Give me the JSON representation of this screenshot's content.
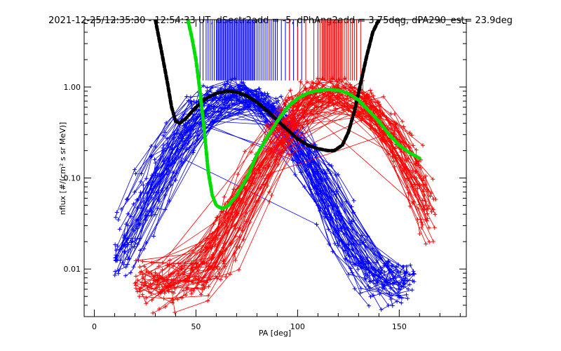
{
  "chart_data": {
    "type": "line",
    "title": "2021-12-25/12:35:30 - 12:54:33 UT, dSectr2add = -5, dPhAng2add = 3.75deg, dPA290_est=  23.9deg",
    "xlabel": "PA [deg]",
    "ylabel": "nflux [#/(cm² s sr MeV)]",
    "xlim": [
      -5,
      183
    ],
    "ylim": [
      0.003,
      5.5
    ],
    "y_scale": "log",
    "x_ticks": [
      0,
      50,
      100,
      150
    ],
    "x_tick_labels": [
      "0",
      "50",
      "100",
      "150"
    ],
    "y_ticks": [
      0.01,
      0.1,
      1.0
    ],
    "y_tick_labels": [
      "0.01",
      "0.10",
      "1.00"
    ],
    "grid": false,
    "colors": {
      "blue_series": "#0000ff",
      "red_series": "#ff0000",
      "black_fit": "#000000",
      "green_fit": "#00dd00"
    },
    "series": [
      {
        "color_key": "blue_series",
        "style": "lines+plus-markers",
        "center_pa": 70,
        "width_pa": 19,
        "peak": 0.9,
        "curve_count": 60,
        "pa_range": [
          10,
          158
        ]
      },
      {
        "color_key": "red_series",
        "style": "lines+plus-markers",
        "center_pa": 118,
        "width_pa": 19,
        "peak": 0.95,
        "curve_count": 60,
        "pa_range": [
          20,
          168
        ]
      },
      {
        "color_key": "black_fit",
        "style": "thick-dashed",
        "x": [
          30,
          33,
          36,
          38,
          40,
          42,
          45,
          50,
          55,
          60,
          65,
          70,
          75,
          80,
          85,
          90,
          95,
          100,
          105,
          110,
          115,
          118,
          122,
          125,
          128,
          131,
          134,
          137,
          140
        ],
        "y": [
          5.5,
          2.5,
          1.1,
          0.6,
          0.42,
          0.4,
          0.45,
          0.6,
          0.75,
          0.85,
          0.9,
          0.88,
          0.8,
          0.68,
          0.55,
          0.43,
          0.34,
          0.27,
          0.23,
          0.21,
          0.2,
          0.2,
          0.23,
          0.32,
          0.55,
          1.1,
          2.2,
          4.0,
          5.5
        ]
      },
      {
        "color_key": "green_fit",
        "style": "thick-dashed",
        "x": [
          46,
          48,
          50,
          52,
          54,
          56,
          58,
          60,
          63,
          66,
          70,
          75,
          80,
          85,
          90,
          95,
          100,
          105,
          110,
          115,
          120,
          125,
          130,
          135,
          140,
          145,
          150,
          155,
          160
        ],
        "y": [
          5.5,
          3.5,
          2.0,
          0.9,
          0.35,
          0.12,
          0.065,
          0.05,
          0.046,
          0.05,
          0.064,
          0.1,
          0.18,
          0.28,
          0.42,
          0.6,
          0.75,
          0.86,
          0.92,
          0.94,
          0.92,
          0.85,
          0.72,
          0.55,
          0.42,
          0.3,
          0.23,
          0.19,
          0.165
        ]
      }
    ],
    "event_bars": {
      "y_range": [
        1.18,
        5.5
      ],
      "blue_x": [
        52,
        53.5,
        55,
        56,
        57,
        58,
        59,
        60,
        60.5,
        61,
        61.5,
        62,
        62.5,
        63,
        63.5,
        64,
        64.5,
        65,
        65.5,
        66,
        66.5,
        67,
        67.5,
        68,
        68.5,
        69,
        69.5,
        70,
        70.5,
        71,
        71.5,
        72,
        72.5,
        73,
        73.5,
        74,
        74.5,
        75,
        75.5,
        76,
        76.5,
        77,
        77.5,
        78,
        78.5,
        79,
        80,
        81,
        82,
        83,
        84,
        85,
        86,
        87,
        88,
        89,
        90,
        92,
        94,
        96,
        98,
        100,
        102,
        104,
        110,
        113,
        118,
        124
      ],
      "red_x": [
        86,
        96,
        100,
        104,
        108,
        110,
        111,
        112,
        112.5,
        113,
        113.5,
        114,
        114.5,
        115,
        115.5,
        116,
        116.5,
        117,
        117.5,
        118,
        118.5,
        119,
        119.5,
        120,
        120.5,
        121,
        121.5,
        122,
        123,
        124,
        125,
        126,
        127,
        128,
        129,
        131
      ]
    }
  }
}
